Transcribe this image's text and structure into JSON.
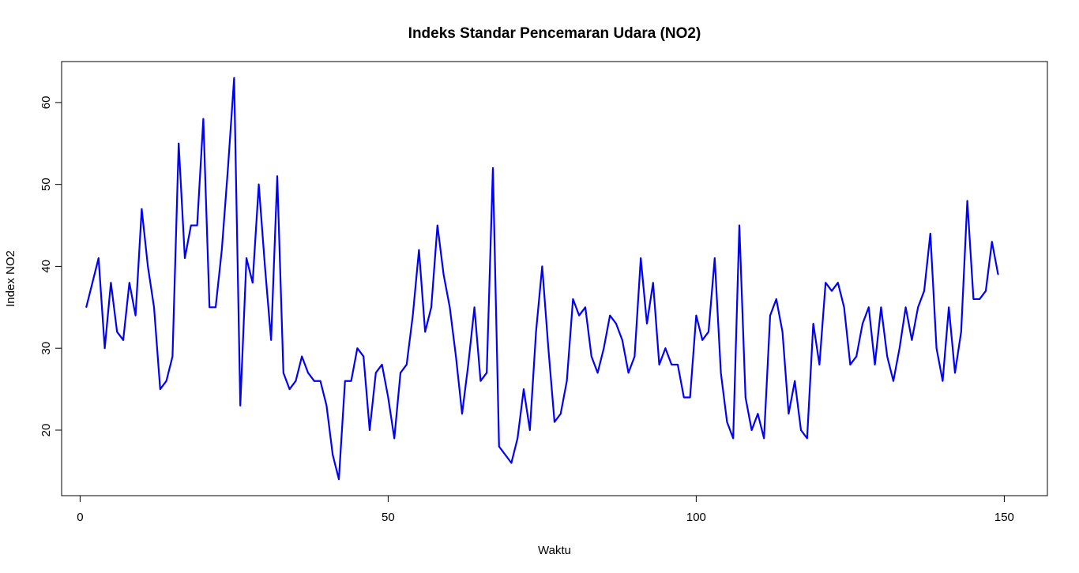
{
  "chart_data": {
    "type": "line",
    "title": "Indeks Standar Pencemaran Udara (NO2)",
    "xlabel": "Waktu",
    "ylabel": "Index NO2",
    "xlim": [
      -3,
      157
    ],
    "ylim": [
      12,
      65
    ],
    "x_ticks": [
      0,
      50,
      100,
      150
    ],
    "y_ticks": [
      20,
      30,
      40,
      50,
      60
    ],
    "line_color": "#0000ff",
    "grid": false,
    "series": [
      {
        "values": [
          35,
          38,
          41,
          30,
          38,
          32,
          31,
          38,
          34,
          47,
          40,
          35,
          25,
          26,
          29,
          55,
          41,
          45,
          45,
          58,
          35,
          35,
          42,
          52,
          63,
          23,
          41,
          38,
          50,
          40,
          31,
          51,
          27,
          25,
          26,
          29,
          27,
          26,
          26,
          23,
          17,
          14,
          26,
          26,
          30,
          29,
          20,
          27,
          28,
          24,
          19,
          27,
          28,
          34,
          42,
          32,
          35,
          45,
          39,
          35,
          29,
          22,
          28,
          35,
          26,
          27,
          52,
          18,
          17,
          16,
          19,
          25,
          20,
          32,
          40,
          30,
          21,
          22,
          26,
          36,
          34,
          35,
          29,
          27,
          30,
          34,
          33,
          31,
          27,
          29,
          41,
          33,
          38,
          28,
          30,
          28,
          28,
          24,
          24,
          34,
          31,
          32,
          41,
          27,
          21,
          19,
          45,
          24,
          20,
          22,
          19,
          34,
          36,
          32,
          22,
          26,
          20,
          19,
          33,
          28,
          38,
          37,
          38,
          35,
          28,
          29,
          33,
          35,
          28,
          35,
          29,
          26,
          30,
          35,
          31,
          35,
          37,
          44,
          30,
          26,
          35,
          27,
          32,
          48,
          36,
          36,
          37,
          43,
          39
        ]
      }
    ]
  }
}
